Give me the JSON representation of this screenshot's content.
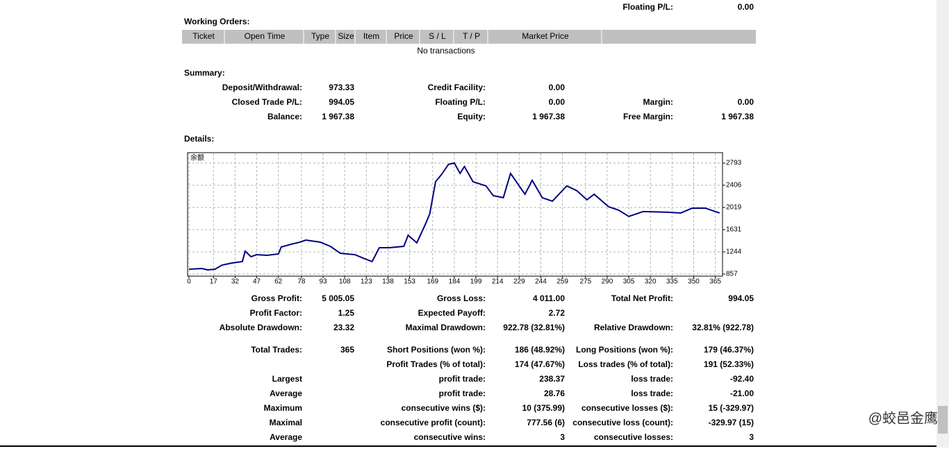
{
  "header": {
    "label": "Floating P/L:",
    "value": "0.00"
  },
  "working_orders": {
    "title": "Working Orders:",
    "columns": [
      "Ticket",
      "Open Time",
      "Type",
      "Size",
      "Item",
      "Price",
      "S / L",
      "T / P",
      "Market Price"
    ],
    "empty_text": "No transactions"
  },
  "summary": {
    "title": "Summary:",
    "rows": [
      [
        "Deposit/Withdrawal:",
        "973.33",
        "Credit Facility:",
        "0.00",
        null,
        null
      ],
      [
        "Closed Trade P/L:",
        "994.05",
        "Floating P/L:",
        "0.00",
        "Margin:",
        "0.00"
      ],
      [
        "Balance:",
        "1 967.38",
        "Equity:",
        "1 967.38",
        "Free Margin:",
        "1 967.38"
      ]
    ]
  },
  "details": {
    "title": "Details:",
    "rows": [
      [
        "Gross Profit:",
        "5 005.05",
        "Gross Loss:",
        "4 011.00",
        "Total Net Profit:",
        "994.05"
      ],
      [
        "Profit Factor:",
        "1.25",
        "Expected Payoff:",
        "2.72",
        null,
        null
      ],
      [
        "Absolute Drawdown:",
        "23.32",
        "Maximal Drawdown:",
        "922.78 (32.81%)",
        "Relative Drawdown:",
        "32.81% (922.78)"
      ],
      [
        "Total Trades:",
        "365",
        "Short Positions (won %):",
        "186 (48.92%)",
        "Long Positions (won %):",
        "179 (46.37%)"
      ],
      [
        null,
        null,
        "Profit Trades (% of total):",
        "174 (47.67%)",
        "Loss trades (% of total):",
        "191 (52.33%)"
      ],
      [
        "Largest",
        null,
        "profit trade:",
        "238.37",
        "loss trade:",
        "-92.40"
      ],
      [
        "Average",
        null,
        "profit trade:",
        "28.76",
        "loss trade:",
        "-21.00"
      ],
      [
        "Maximum",
        null,
        "consecutive wins ($):",
        "10 (375.99)",
        "consecutive losses ($):",
        "15 (-329.97)"
      ],
      [
        "Maximal",
        null,
        "consecutive profit (count):",
        "777.56 (6)",
        "consecutive loss (count):",
        "-329.97 (15)"
      ],
      [
        "Average",
        null,
        "consecutive wins:",
        "3",
        "consecutive losses:",
        "3"
      ]
    ]
  },
  "watermark": "@蛟邑金鹰",
  "chart_data": {
    "type": "line",
    "series_label": "余额",
    "color": "#000080",
    "grid": true,
    "x": [
      0,
      9,
      13,
      18,
      23,
      30,
      37,
      39,
      43,
      47,
      54,
      62,
      64,
      71,
      77,
      81,
      91,
      98,
      105,
      115,
      122,
      127,
      132,
      139,
      149,
      152,
      158,
      164,
      167,
      171,
      175,
      180,
      184,
      188,
      191,
      197,
      206,
      211,
      218,
      223,
      228,
      233,
      238,
      245,
      252,
      262,
      269,
      276,
      281,
      291,
      298,
      305,
      315,
      332,
      341,
      349,
      358,
      368
    ],
    "values": [
      942,
      954,
      930,
      942,
      1014,
      1051,
      1075,
      1256,
      1160,
      1196,
      1184,
      1208,
      1329,
      1378,
      1414,
      1450,
      1414,
      1341,
      1220,
      1196,
      1123,
      1075,
      1317,
      1317,
      1341,
      1535,
      1402,
      1729,
      1910,
      2467,
      2588,
      2770,
      2794,
      2612,
      2733,
      2467,
      2394,
      2225,
      2189,
      2612,
      2431,
      2249,
      2491,
      2189,
      2128,
      2394,
      2310,
      2152,
      2249,
      2031,
      1971,
      1862,
      1947,
      1935,
      1922,
      2007,
      2007,
      1922
    ],
    "xlim": [
      0,
      370
    ],
    "ylim": [
      821,
      2974
    ],
    "xticks": [
      0,
      17,
      32,
      47,
      62,
      78,
      93,
      108,
      123,
      138,
      153,
      169,
      184,
      199,
      214,
      229,
      244,
      259,
      275,
      290,
      305,
      320,
      335,
      350,
      365
    ],
    "yticks": [
      857,
      1244,
      1631,
      2019,
      2406,
      2793
    ]
  }
}
